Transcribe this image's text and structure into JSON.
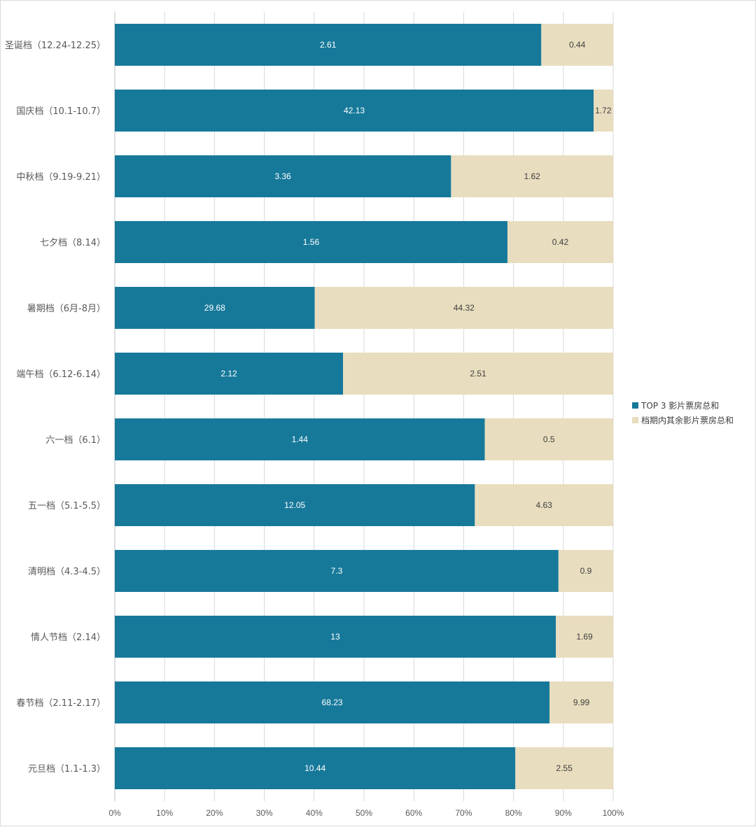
{
  "chart_data": {
    "type": "bar",
    "orientation": "horizontal",
    "stacking": "percent",
    "categories": [
      "圣诞档（12.24-12.25）",
      "国庆档（10.1-10.7）",
      "中秋档（9.19-9.21）",
      "七夕档（8.14）",
      "暑期档（6月-8月）",
      "端午档（6.12-6.14）",
      "六一档（6.1）",
      "五一档（5.1-5.5）",
      "清明档（4.3-4.5）",
      "情人节档（2.14）",
      "春节档（2.11-2.17）",
      "元旦档（1.1-1.3）"
    ],
    "series": [
      {
        "name": "TOP 3 影片票房总和",
        "color": "#17799A",
        "values": [
          2.61,
          42.13,
          3.36,
          1.56,
          29.68,
          2.12,
          1.44,
          12.05,
          7.3,
          13,
          68.23,
          10.44
        ]
      },
      {
        "name": "档期内其余影片票房总和",
        "color": "#E8DDBE",
        "values": [
          0.44,
          1.72,
          1.62,
          0.42,
          44.32,
          2.51,
          0.5,
          4.63,
          0.9,
          1.69,
          9.99,
          2.55
        ]
      }
    ],
    "x_ticks": [
      "0%",
      "10%",
      "20%",
      "30%",
      "40%",
      "50%",
      "60%",
      "70%",
      "80%",
      "90%",
      "100%"
    ],
    "xlim": [
      0,
      100
    ],
    "grid": "vertical",
    "legend_position": "right"
  }
}
